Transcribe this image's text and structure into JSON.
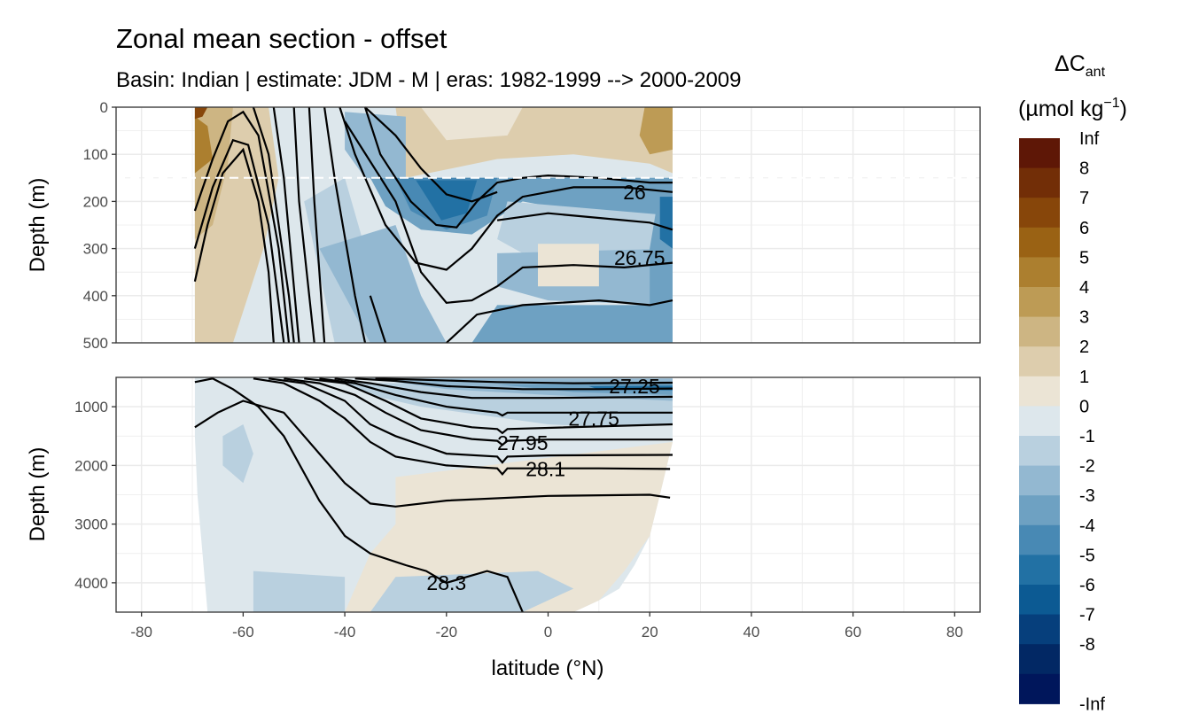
{
  "chart_data": {
    "type": "heatmap",
    "title": "Zonal mean section - offset",
    "subtitle": "Basin: Indian | estimate: JDM - M | eras: 1982-1999 --> 2000-2009",
    "xlabel": "latitude (°N)",
    "x_ticks": [
      "-80",
      "-60",
      "-40",
      "-20",
      "0",
      "20",
      "40",
      "60",
      "80"
    ],
    "xlim": [
      -85,
      85
    ],
    "panels": [
      {
        "name": "upper",
        "ylabel": "Depth (m)",
        "ylim": [
          0,
          500
        ],
        "y_ticks": [
          "0",
          "100",
          "200",
          "300",
          "400",
          "500"
        ],
        "dashed_line_depth": 150,
        "isopycnal_labels": [
          {
            "text": "26",
            "lat": 17,
            "depth": 180
          },
          {
            "text": "26.75",
            "lat": 18,
            "depth": 320
          }
        ]
      },
      {
        "name": "lower",
        "ylabel": "Depth (m)",
        "ylim": [
          500,
          4500
        ],
        "y_ticks": [
          "1000",
          "2000",
          "3000",
          "4000"
        ],
        "isopycnal_labels": [
          {
            "text": "27.25",
            "lat": 17,
            "depth": 650
          },
          {
            "text": "27.75",
            "lat": 9,
            "depth": 1200
          },
          {
            "text": "27.95",
            "lat": -5,
            "depth": 1620
          },
          {
            "text": "28.1",
            "lat": -0.5,
            "depth": 2060
          },
          {
            "text": "28.3",
            "lat": -20,
            "depth": 4000
          }
        ]
      }
    ],
    "legend": {
      "title_main": "ΔC",
      "title_sub": "ant",
      "units_prefix": "(µmol kg",
      "units_exp": "−1",
      "units_suffix": ")",
      "position": "right",
      "bins": [
        {
          "label": "Inf",
          "color": "#5e1706"
        },
        {
          "label": "8",
          "color": "#722e07"
        },
        {
          "label": "7",
          "color": "#87460a"
        },
        {
          "label": "6",
          "color": "#9a6214"
        },
        {
          "label": "5",
          "color": "#ac7f2f"
        },
        {
          "label": "4",
          "color": "#bd9b55"
        },
        {
          "label": "3",
          "color": "#cdb583"
        },
        {
          "label": "2",
          "color": "#ddcdad"
        },
        {
          "label": "1",
          "color": "#ebe4d5"
        },
        {
          "label": "0",
          "color": "#dde7ec"
        },
        {
          "label": "-1",
          "color": "#b9d0df"
        },
        {
          "label": "-2",
          "color": "#93b8d1"
        },
        {
          "label": "-3",
          "color": "#6ea1c2"
        },
        {
          "label": "-4",
          "color": "#4889b4"
        },
        {
          "label": "-5",
          "color": "#2271a4"
        },
        {
          "label": "-6",
          "color": "#0c5a93"
        },
        {
          "label": "-7",
          "color": "#063f7c"
        },
        {
          "label": "-8",
          "color": "#022864"
        },
        {
          "label": "-Inf",
          "color": "#00165b"
        }
      ]
    }
  }
}
